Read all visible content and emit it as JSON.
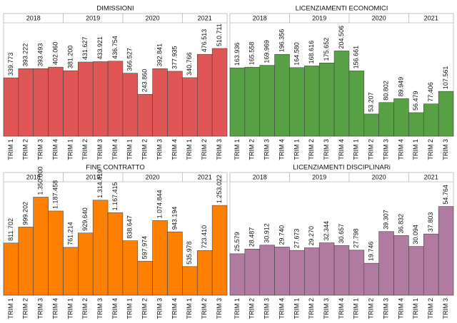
{
  "chart_data": [
    {
      "type": "bar",
      "title": "DIMISSIONI",
      "color": "#e05656",
      "ylim": [
        0,
        660000
      ],
      "groups": [
        {
          "label": "2018",
          "categories": [
            "TRIM 1",
            "TRIM 2",
            "TRIM 3",
            "TRIM 4"
          ],
          "values": [
            339773,
            393222,
            393493,
            402060
          ],
          "value_labels": [
            "339.773",
            "393.222",
            "393.493",
            "402.060"
          ]
        },
        {
          "label": "2019",
          "categories": [
            "TRIM 1",
            "TRIM 2",
            "TRIM 3",
            "TRIM 4"
          ],
          "values": [
            381200,
            431627,
            433921,
            436754
          ],
          "value_labels": [
            "381.200",
            "431.627",
            "433.921",
            "436.754"
          ]
        },
        {
          "label": "2020",
          "categories": [
            "TRIM 1",
            "TRIM 2",
            "TRIM 3",
            "TRIM 4"
          ],
          "values": [
            366527,
            243860,
            392841,
            377935
          ],
          "value_labels": [
            "366.527",
            "243.860",
            "392.841",
            "377.935"
          ]
        },
        {
          "label": "2021",
          "categories": [
            "TRIM 1",
            "TRIM 2",
            "TRIM 3"
          ],
          "values": [
            340766,
            476513,
            510711
          ],
          "value_labels": [
            "340.766",
            "476.513",
            "510.711"
          ]
        }
      ]
    },
    {
      "type": "bar",
      "title": "LICENZIAMENTI ECONOMICI",
      "color": "#57a043",
      "ylim": [
        0,
        272000
      ],
      "groups": [
        {
          "label": "2018",
          "categories": [
            "TRIM 1",
            "TRIM 2",
            "TRIM 3",
            "TRIM 4"
          ],
          "values": [
            163936,
            165558,
            169969,
            196356
          ],
          "value_labels": [
            "163.936",
            "165.558",
            "169.969",
            "196.356"
          ]
        },
        {
          "label": "2019",
          "categories": [
            "TRIM 1",
            "TRIM 2",
            "TRIM 3",
            "TRIM 4"
          ],
          "values": [
            164580,
            168616,
            175652,
            204506
          ],
          "value_labels": [
            "164.580",
            "168.616",
            "175.652",
            "204.506"
          ]
        },
        {
          "label": "2020",
          "categories": [
            "TRIM 1",
            "TRIM 2",
            "TRIM 3",
            "TRIM 4"
          ],
          "values": [
            156661,
            53207,
            80802,
            89949
          ],
          "value_labels": [
            "156.661",
            "53.207",
            "80.802",
            "89.949"
          ]
        },
        {
          "label": "2021",
          "categories": [
            "TRIM 1",
            "TRIM 2",
            "TRIM 3"
          ],
          "values": [
            56479,
            77406,
            107561
          ],
          "value_labels": [
            "56.479",
            "77.406",
            "107.561"
          ]
        }
      ]
    },
    {
      "type": "bar",
      "title": "FINE CONTRATTO",
      "color": "#ff8000",
      "ylim": [
        200000,
        1530000
      ],
      "groups": [
        {
          "label": "2018",
          "categories": [
            "TRIM 1",
            "TRIM 2",
            "TRIM 3",
            "TRIM 4"
          ],
          "values": [
            811702,
            999202,
            1350000,
            1187458
          ],
          "value_labels": [
            "811.702",
            "999.202",
            "1.350.000",
            "1.187.458"
          ]
        },
        {
          "label": "2019",
          "categories": [
            "TRIM 1",
            "TRIM 2",
            "TRIM 3",
            "TRIM 4"
          ],
          "values": [
            761214,
            929640,
            1314419,
            1167415
          ],
          "value_labels": [
            "761.214",
            "929.640",
            "1.314.419",
            "1.167.415"
          ]
        },
        {
          "label": "2020",
          "categories": [
            "TRIM 1",
            "TRIM 2",
            "TRIM 3",
            "TRIM 4"
          ],
          "values": [
            838647,
            597974,
            1074844,
            943194
          ],
          "value_labels": [
            "838.647",
            "597.974",
            "1.074.844",
            "943.194"
          ]
        },
        {
          "label": "2021",
          "categories": [
            "TRIM 1",
            "TRIM 2",
            "TRIM 3"
          ],
          "values": [
            535978,
            723410,
            1253022
          ],
          "value_labels": [
            "535.978",
            "723.410",
            "1.253.022"
          ]
        }
      ]
    },
    {
      "type": "bar",
      "title": "LICENZIAMENTI DISCIPLINARi",
      "color": "#b07aa1",
      "ylim": [
        0,
        70000
      ],
      "groups": [
        {
          "label": "2018",
          "categories": [
            "TRIM 1",
            "TRIM 2",
            "TRIM 3",
            "TRIM 4"
          ],
          "values": [
            25579,
            28487,
            30912,
            29740
          ],
          "value_labels": [
            "25.579",
            "28.487",
            "30.912",
            "29.740"
          ]
        },
        {
          "label": "2019",
          "categories": [
            "TRIM 1",
            "TRIM 2",
            "TRIM 3",
            "TRIM 4"
          ],
          "values": [
            27673,
            29270,
            32344,
            30657
          ],
          "value_labels": [
            "27.673",
            "29.270",
            "32.344",
            "30.657"
          ]
        },
        {
          "label": "2020",
          "categories": [
            "TRIM 1",
            "TRIM 2",
            "TRIM 3",
            "TRIM 4"
          ],
          "values": [
            27798,
            19746,
            39307,
            36832
          ],
          "value_labels": [
            "27.798",
            "19.746",
            "39.307",
            "36.832"
          ]
        },
        {
          "label": "2021",
          "categories": [
            "TRIM 1",
            "TRIM 2",
            "TRIM 3"
          ],
          "values": [
            30094,
            37803,
            54764
          ],
          "value_labels": [
            "30.094",
            "37.803",
            "54.764"
          ]
        }
      ]
    }
  ]
}
